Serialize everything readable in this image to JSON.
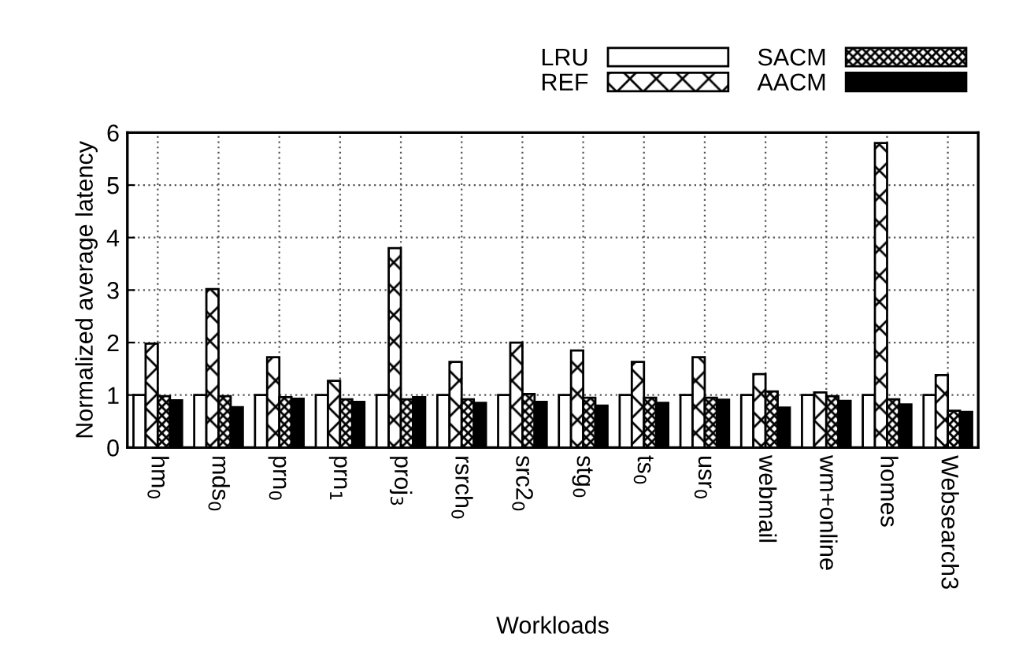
{
  "chart_data": {
    "type": "bar",
    "xlabel": "Workloads",
    "ylabel": "Normalized average latency",
    "categories": [
      "hm$_{0}$",
      "mds$_{0}$",
      "prn$_{0}$",
      "prn$_{1}$",
      "proj$_{3}$",
      "rsrch$_{0}$",
      "src2$_{0}$",
      "stg$_{0}$",
      "ts$_{0}$",
      "usr$_{0}$",
      "webmail",
      "wm+online",
      "homes",
      "Websearch3"
    ],
    "series": [
      {
        "name": "LRU",
        "color": "#ffffff",
        "values": [
          1,
          1,
          1,
          1,
          1,
          1,
          1,
          1,
          1,
          1,
          1,
          1,
          1,
          1
        ]
      },
      {
        "name": "REF",
        "color": "#000000",
        "values": [
          1.98,
          3.02,
          1.72,
          1.27,
          3.8,
          1.63,
          2.0,
          1.85,
          1.63,
          1.72,
          1.4,
          1.05,
          5.8,
          1.38
        ]
      },
      {
        "name": "SACM",
        "color": "#000000",
        "values": [
          0.98,
          0.98,
          0.96,
          0.92,
          0.92,
          0.92,
          1.02,
          0.95,
          0.95,
          0.95,
          1.07,
          0.98,
          0.92,
          0.7
        ]
      },
      {
        "name": "AACM",
        "color": "#000000",
        "values": [
          0.9,
          0.77,
          0.93,
          0.87,
          0.96,
          0.85,
          0.87,
          0.8,
          0.85,
          0.91,
          0.76,
          0.89,
          0.82,
          0.68
        ]
      }
    ],
    "ylim": [
      0,
      6
    ],
    "yticks": [
      0,
      1,
      2,
      3,
      4,
      5,
      6
    ],
    "grid": true,
    "legend": "top right"
  }
}
